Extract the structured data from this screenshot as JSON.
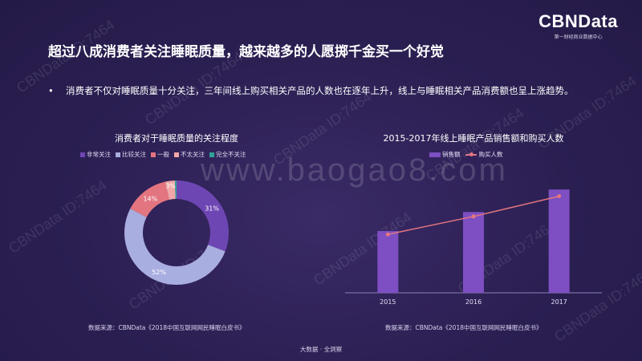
{
  "header": {
    "title": "超过八成消费者关注睡眠质量，越来越多的人愿掷千金买一个好觉",
    "logo_main": "CBNData",
    "logo_sub": "第一财经商业数据中心"
  },
  "bullet": {
    "marker": "•",
    "text": "消费者不仅对睡眠质量十分关注，三年间线上购买相关产品的人数也在逐年上升，线上与睡眠相关产品消费额也呈上涨趋势。"
  },
  "watermark": {
    "site": "www.baogao8.com",
    "id_text": "CBNData ID:7464"
  },
  "footer": {
    "text": "大数据 · 全洞察"
  },
  "chart_data": [
    {
      "type": "pie",
      "variant": "donut",
      "title": "消费者对于睡眠质量的关注程度",
      "legend_position": "top",
      "slices": [
        {
          "name": "非常关注",
          "value": 31,
          "label": "31%",
          "color": "#6e46b4"
        },
        {
          "name": "比较关注",
          "value": 52,
          "label": "52%",
          "color": "#a9aee0"
        },
        {
          "name": "一般",
          "value": 14,
          "label": "14%",
          "color": "#e37580"
        },
        {
          "name": "不太关注",
          "value": 3,
          "label": "3%",
          "color": "#f0a7a7"
        },
        {
          "name": "完全不关注",
          "value": 0.5,
          "label": "",
          "color": "#2fa39b"
        }
      ],
      "source": "数据来源：CBNData《2018中国互联网网民睡眠白皮书》"
    },
    {
      "type": "bar",
      "title": "2015-2017年线上睡眠产品销售额和购买人数",
      "legend_position": "top",
      "categories": [
        "2015",
        "2016",
        "2017"
      ],
      "series": [
        {
          "name": "销售额",
          "type": "bar",
          "values": [
            0.55,
            0.72,
            0.92
          ],
          "color": "#7d4fc2"
        },
        {
          "name": "购买人数",
          "type": "line",
          "values": [
            0.52,
            0.68,
            0.86
          ],
          "color": "#e37580"
        }
      ],
      "ylim": [
        0,
        1
      ],
      "grid": false,
      "source": "数据来源：CBNData《2018中国互联网网民睡眠白皮书》"
    }
  ]
}
